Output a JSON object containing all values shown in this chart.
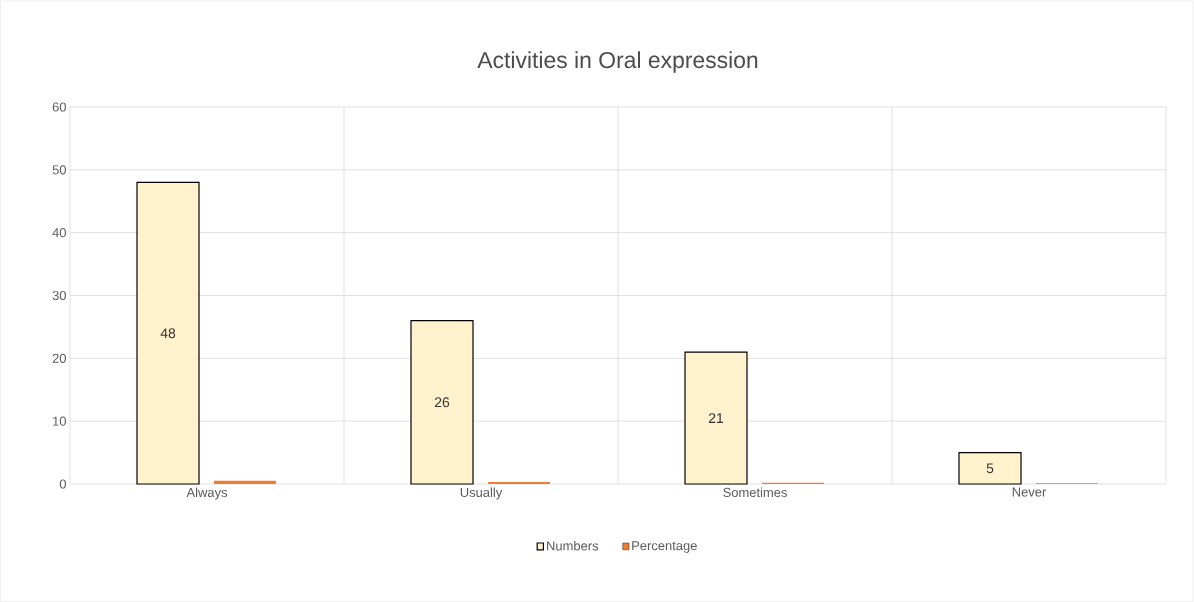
{
  "chart_data": {
    "type": "bar",
    "title": "Activities in Oral expression",
    "categories": [
      "Always",
      "Usually",
      "Sometimes",
      "Never"
    ],
    "series": [
      {
        "name": "Numbers",
        "color": "#fff2cc",
        "values": [
          48,
          26,
          21,
          5
        ],
        "value_labels": [
          "48",
          "26",
          "21",
          "5"
        ]
      },
      {
        "name": "Percentage",
        "color": "#ed7d31",
        "values": [
          0.5,
          0.3,
          0.2,
          0.1
        ]
      }
    ],
    "ylim": [
      0,
      60
    ],
    "yticks": [
      0,
      10,
      20,
      30,
      40,
      50,
      60
    ],
    "grid": true,
    "legend": "bottom"
  }
}
